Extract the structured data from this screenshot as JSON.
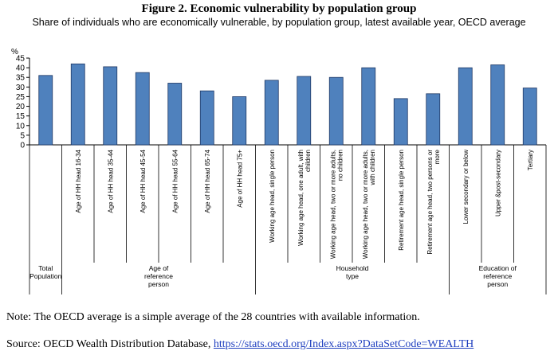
{
  "figure": {
    "title": "Figure 2. Economic vulnerability by population group",
    "subtitle": "Share of individuals  who are economically  vulnerable,  by population  group, latest available year, OECD average"
  },
  "chart_data": {
    "type": "bar",
    "ylabel": "%",
    "ylim": [
      0,
      45
    ],
    "yticks": [
      0,
      5,
      10,
      15,
      20,
      25,
      30,
      35,
      40,
      45
    ],
    "grid": false,
    "bar_color": "#4f81bd",
    "categories": [
      "",
      "Age of HH head 16-34",
      "Age of HH head 35-44",
      "Age of HH head 45-54",
      "Age of HH head 55-64",
      "Age of HH head 65-74",
      "Age of HH head 75+",
      "Working age head, single person",
      "Working age head, one adult, with children",
      "Working age head, two or more adults, no children",
      "Working age head, two or more adults, with children",
      "Retirement age head, single person",
      "Retirement age head, two persons or more",
      "Lower secondary or below",
      "Upper &post-secondary",
      "Tertiary"
    ],
    "category_lines": [
      [
        ""
      ],
      [
        "Age of HH head 16-34"
      ],
      [
        "Age of HH head 35-44"
      ],
      [
        "Age of HH head 45-54"
      ],
      [
        "Age of HH head 55-64"
      ],
      [
        "Age of HH head 65-74"
      ],
      [
        "Age of HH head 75+"
      ],
      [
        "Working age head, single person"
      ],
      [
        "Working age head, one adult, with",
        "children"
      ],
      [
        "Working age head, two or more adults,",
        "no children"
      ],
      [
        "Working age head, two or more adults,",
        "with children"
      ],
      [
        "Retirement age head, single person"
      ],
      [
        "Retirement age head, two persons or",
        "more"
      ],
      [
        "Lower secondary or below"
      ],
      [
        "Upper &post-secondary"
      ],
      [
        "Tertiary"
      ]
    ],
    "values": [
      36,
      42,
      40.5,
      37.5,
      32,
      28,
      25,
      33.5,
      35.5,
      35,
      40,
      24,
      26.5,
      40,
      41.5,
      29.5
    ],
    "groups": [
      {
        "lines": [
          "Total",
          "Population"
        ],
        "from": 0,
        "to": 0
      },
      {
        "lines": [
          "Age of",
          "reference",
          "person"
        ],
        "from": 1,
        "to": 6
      },
      {
        "lines": [
          "Household",
          "type"
        ],
        "from": 7,
        "to": 12
      },
      {
        "lines": [
          "Education of",
          "reference",
          "person"
        ],
        "from": 13,
        "to": 15
      }
    ]
  },
  "note": "Note: The OECD  average is a simple average of the 28 countries with available information.",
  "source": {
    "prefix": "Source: OECD Wealth Distribution Database, ",
    "link": "https://stats.oecd.org/Index.aspx?DataSetCode=WEALTH"
  }
}
